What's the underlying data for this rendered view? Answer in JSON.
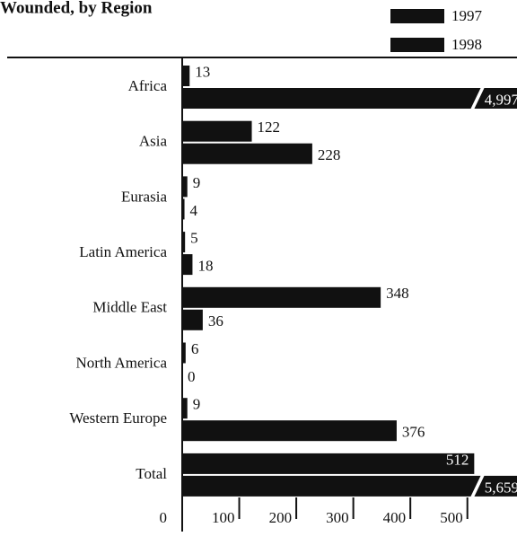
{
  "chart_data": {
    "type": "hbar",
    "title": "Wounded, by Region",
    "categories": [
      "Africa",
      "Asia",
      "Eurasia",
      "Latin America",
      "Middle East",
      "North America",
      "Western Europe",
      "Total"
    ],
    "series": [
      {
        "name": "1997",
        "color": "#111111",
        "values": [
          13,
          122,
          9,
          5,
          348,
          6,
          9,
          512
        ]
      },
      {
        "name": "1998",
        "color": "#111111",
        "values": [
          4997,
          228,
          4,
          18,
          36,
          0,
          376,
          5659
        ],
        "value_labels": [
          "4,997",
          "228",
          "4",
          "18",
          "36",
          "0",
          "376",
          "5,659"
        ]
      }
    ],
    "xlim": [
      0,
      587
    ],
    "xticks": [
      0,
      100,
      200,
      300,
      400,
      500
    ],
    "axis_break": true
  }
}
